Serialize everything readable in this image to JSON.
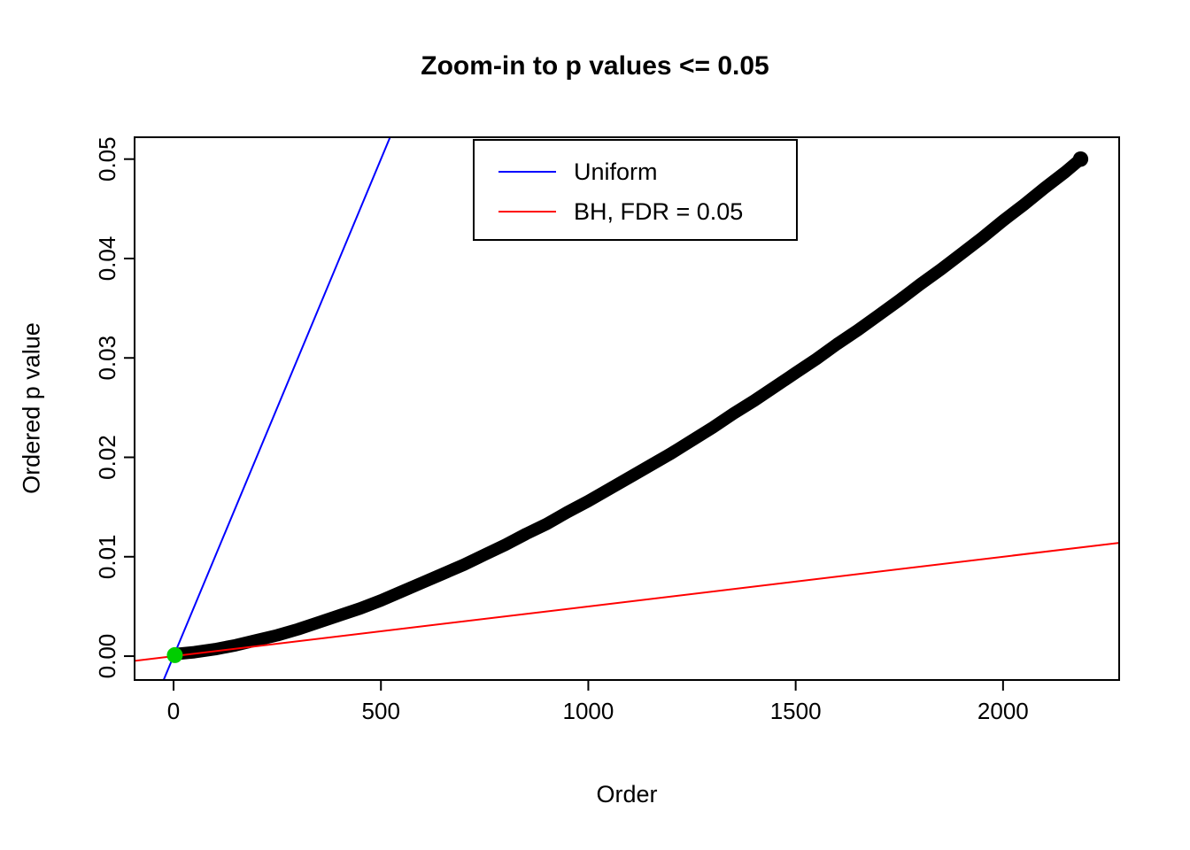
{
  "chart_data": {
    "type": "scatter",
    "title": "Zoom-in to p values <= 0.05",
    "xlabel": "Order",
    "ylabel": "Ordered p value",
    "xlim": [
      -94,
      2280
    ],
    "ylim": [
      -0.0024,
      0.0522
    ],
    "grid": false,
    "x_ticks": [
      0,
      500,
      1000,
      1500,
      2000
    ],
    "x_tick_labels": [
      "0",
      "500",
      "1000",
      "1500",
      "2000"
    ],
    "y_ticks": [
      0,
      0.01,
      0.02,
      0.03,
      0.04,
      0.05
    ],
    "y_tick_labels": [
      "0.00",
      "0.01",
      "0.02",
      "0.03",
      "0.04",
      "0.05"
    ],
    "legend": {
      "position": "top-center-inside",
      "entries": [
        {
          "label": "Uniform",
          "color": "#0000FF"
        },
        {
          "label": "BH, FDR = 0.05",
          "color": "#FF0000"
        }
      ]
    },
    "series": [
      {
        "name": "observed-ordered-p-values",
        "type": "thick-point-curve",
        "color": "#000000",
        "stroke_width": 14,
        "points": [
          [
            1,
            0.0002
          ],
          [
            50,
            0.0004
          ],
          [
            100,
            0.0007
          ],
          [
            150,
            0.0011
          ],
          [
            200,
            0.0016
          ],
          [
            250,
            0.0021
          ],
          [
            300,
            0.0027
          ],
          [
            350,
            0.0034
          ],
          [
            400,
            0.0041
          ],
          [
            450,
            0.0048
          ],
          [
            500,
            0.0056
          ],
          [
            550,
            0.0065
          ],
          [
            600,
            0.0074
          ],
          [
            650,
            0.0083
          ],
          [
            700,
            0.0092
          ],
          [
            750,
            0.0102
          ],
          [
            800,
            0.0112
          ],
          [
            850,
            0.0123
          ],
          [
            900,
            0.0133
          ],
          [
            950,
            0.0145
          ],
          [
            1000,
            0.0156
          ],
          [
            1050,
            0.0168
          ],
          [
            1100,
            0.018
          ],
          [
            1150,
            0.0192
          ],
          [
            1200,
            0.0204
          ],
          [
            1250,
            0.0217
          ],
          [
            1300,
            0.023
          ],
          [
            1350,
            0.0244
          ],
          [
            1400,
            0.0257
          ],
          [
            1450,
            0.0271
          ],
          [
            1500,
            0.0285
          ],
          [
            1550,
            0.0299
          ],
          [
            1600,
            0.0314
          ],
          [
            1650,
            0.0328
          ],
          [
            1700,
            0.0343
          ],
          [
            1750,
            0.0358
          ],
          [
            1800,
            0.0374
          ],
          [
            1850,
            0.0389
          ],
          [
            1900,
            0.0405
          ],
          [
            1950,
            0.0421
          ],
          [
            2000,
            0.0438
          ],
          [
            2050,
            0.0454
          ],
          [
            2100,
            0.0471
          ],
          [
            2150,
            0.0487
          ],
          [
            2187,
            0.05
          ]
        ]
      },
      {
        "name": "uniform-line",
        "type": "line",
        "color": "#0000FF",
        "stroke_width": 2,
        "through": [
          [
            0,
            0
          ],
          [
            500,
            0.05
          ]
        ]
      },
      {
        "name": "bh-fdr-line",
        "type": "line",
        "color": "#FF0000",
        "stroke_width": 2,
        "through": [
          [
            0,
            0
          ],
          [
            2000,
            0.01
          ]
        ]
      },
      {
        "name": "significant-point",
        "type": "point",
        "color": "#00CD00",
        "point": [
          3,
          0.0001
        ],
        "radius": 9
      }
    ]
  }
}
